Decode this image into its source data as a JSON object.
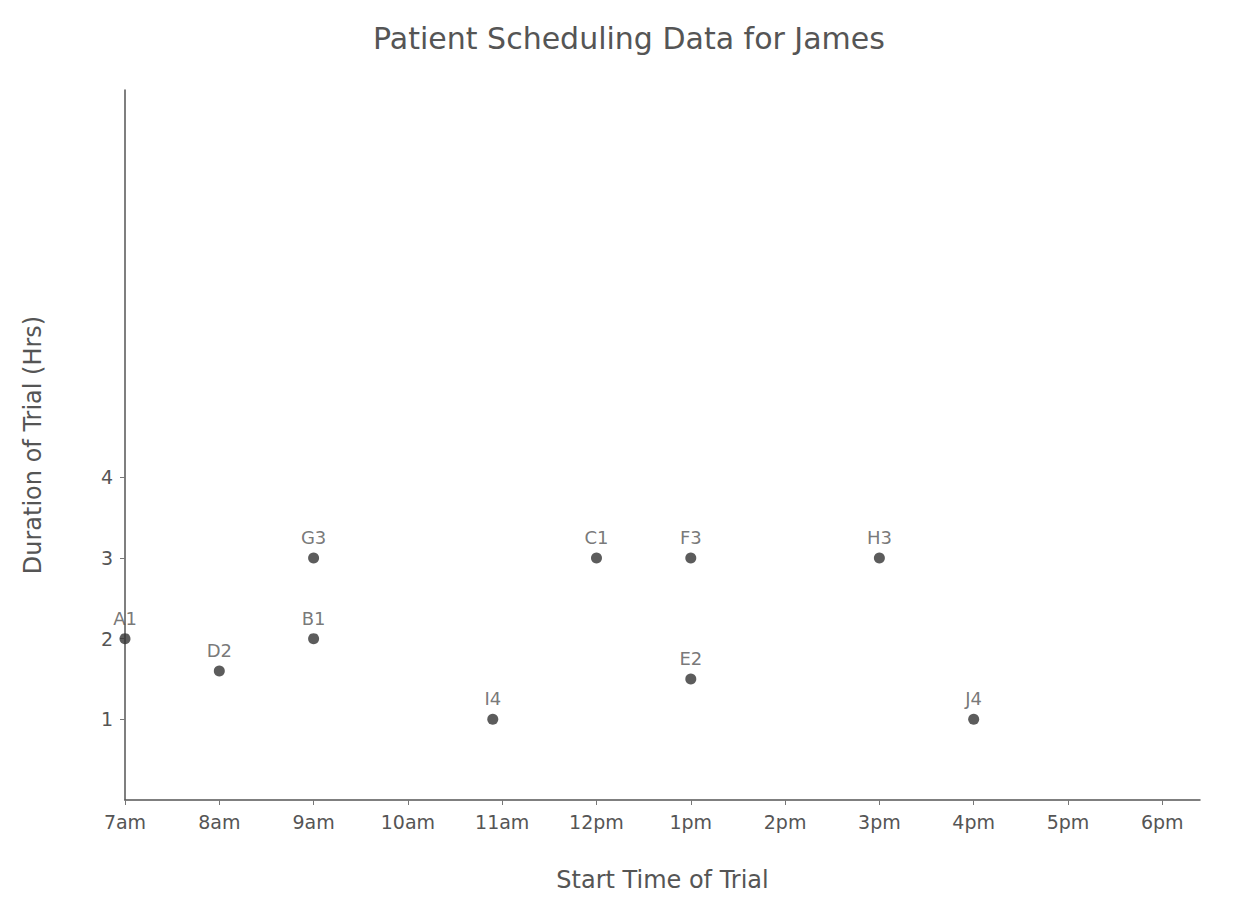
{
  "chart_data": {
    "type": "scatter",
    "title": "Patient Scheduling Data for James",
    "x_label": "Start Time of Trial",
    "y_label": "Duration of Trial (Hrs)",
    "x": [
      7.0,
      8.0,
      9.0,
      9.0,
      10.9,
      12.0,
      13.0,
      13.0,
      15.0,
      16.0
    ],
    "values": [
      2.0,
      1.6,
      3.0,
      2.0,
      1.0,
      3.0,
      3.0,
      1.5,
      3.0,
      1.0
    ],
    "point_labels": [
      "A1",
      "D2",
      "G3",
      "B1",
      "I4",
      "C1",
      "F3",
      "E2",
      "H3",
      "J4"
    ],
    "color": "#333333",
    "marker": "circle",
    "xlim": [
      7,
      18.4
    ],
    "xticks": [
      {
        "value": 7,
        "label": "7am"
      },
      {
        "value": 8,
        "label": "8am"
      },
      {
        "value": 9,
        "label": "9am"
      },
      {
        "value": 10,
        "label": "10am"
      },
      {
        "value": 11,
        "label": "11am"
      },
      {
        "value": 12,
        "label": "12pm"
      },
      {
        "value": 13,
        "label": "1pm"
      },
      {
        "value": 14,
        "label": "2pm"
      },
      {
        "value": 15,
        "label": "3pm"
      },
      {
        "value": 16,
        "label": "4pm"
      },
      {
        "value": 17,
        "label": "5pm"
      },
      {
        "value": 18,
        "label": "6pm"
      }
    ],
    "ylim": [
      0,
      8.8
    ],
    "yticks": [
      1,
      2,
      3,
      4
    ],
    "grid": false,
    "data_labels": true
  }
}
